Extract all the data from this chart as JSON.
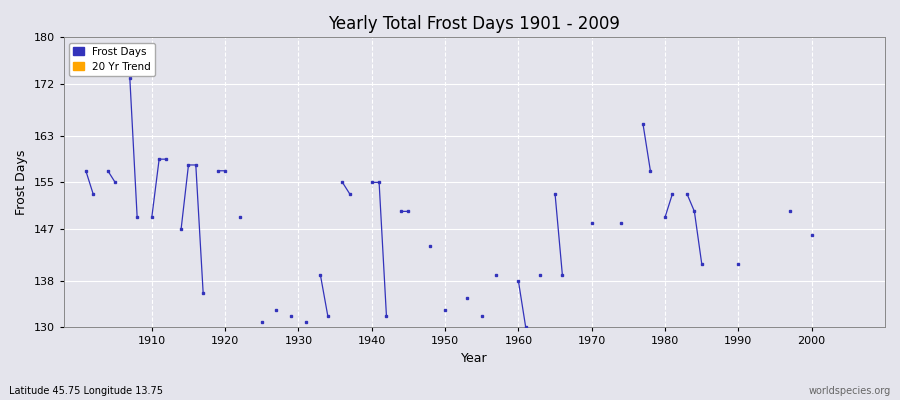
{
  "title": "Yearly Total Frost Days 1901 - 2009",
  "xlabel": "Year",
  "ylabel": "Frost Days",
  "subtitle": "Latitude 45.75 Longitude 13.75",
  "watermark": "worldspecies.org",
  "ylim": [
    130,
    180
  ],
  "yticks": [
    130,
    138,
    147,
    155,
    163,
    172,
    180
  ],
  "xlim": [
    1898,
    2010
  ],
  "background_color": "#e4e4ec",
  "line_color": "#3333bb",
  "trend_color": "#FFA500",
  "data_points": [
    [
      1901,
      157
    ],
    [
      1902,
      153
    ],
    [
      1904,
      157
    ],
    [
      1905,
      155
    ],
    [
      1907,
      173
    ],
    [
      1908,
      149
    ],
    [
      1910,
      149
    ],
    [
      1911,
      159
    ],
    [
      1912,
      159
    ],
    [
      1914,
      147
    ],
    [
      1915,
      158
    ],
    [
      1916,
      158
    ],
    [
      1917,
      136
    ],
    [
      1919,
      157
    ],
    [
      1920,
      157
    ],
    [
      1922,
      149
    ],
    [
      1925,
      131
    ],
    [
      1927,
      133
    ],
    [
      1929,
      132
    ],
    [
      1931,
      131
    ],
    [
      1933,
      139
    ],
    [
      1934,
      132
    ],
    [
      1936,
      155
    ],
    [
      1937,
      153
    ],
    [
      1940,
      155
    ],
    [
      1941,
      155
    ],
    [
      1942,
      132
    ],
    [
      1944,
      150
    ],
    [
      1945,
      150
    ],
    [
      1948,
      144
    ],
    [
      1950,
      133
    ],
    [
      1953,
      135
    ],
    [
      1955,
      132
    ],
    [
      1957,
      139
    ],
    [
      1960,
      138
    ],
    [
      1961,
      130
    ],
    [
      1963,
      139
    ],
    [
      1965,
      153
    ],
    [
      1966,
      139
    ],
    [
      1970,
      148
    ],
    [
      1974,
      148
    ],
    [
      1977,
      165
    ],
    [
      1978,
      157
    ],
    [
      1980,
      149
    ],
    [
      1981,
      153
    ],
    [
      1983,
      153
    ],
    [
      1984,
      150
    ],
    [
      1985,
      141
    ],
    [
      1990,
      141
    ],
    [
      1997,
      150
    ],
    [
      2000,
      146
    ]
  ],
  "xticks": [
    1910,
    1920,
    1930,
    1940,
    1950,
    1960,
    1970,
    1980,
    1990,
    2000
  ]
}
